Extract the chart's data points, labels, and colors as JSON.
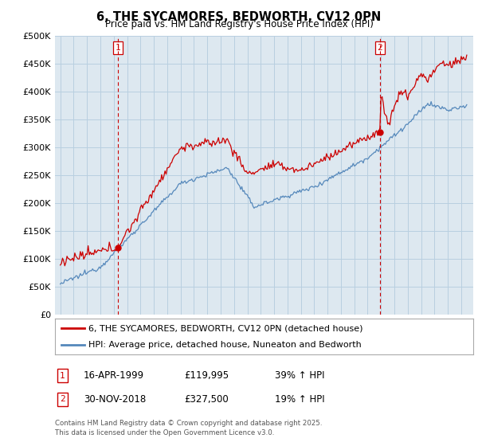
{
  "title": "6, THE SYCAMORES, BEDWORTH, CV12 0PN",
  "subtitle": "Price paid vs. HM Land Registry's House Price Index (HPI)",
  "legend_line1": "6, THE SYCAMORES, BEDWORTH, CV12 0PN (detached house)",
  "legend_line2": "HPI: Average price, detached house, Nuneaton and Bedworth",
  "annotation1_label": "1",
  "annotation1_date": "16-APR-1999",
  "annotation1_price": "£119,995",
  "annotation1_hpi": "39% ↑ HPI",
  "annotation2_label": "2",
  "annotation2_date": "30-NOV-2018",
  "annotation2_price": "£327,500",
  "annotation2_hpi": "19% ↑ HPI",
  "footer": "Contains HM Land Registry data © Crown copyright and database right 2025.\nThis data is licensed under the Open Government Licence v3.0.",
  "red_color": "#cc0000",
  "blue_color": "#5588bb",
  "chart_bg_color": "#dde8f0",
  "background_color": "#ffffff",
  "grid_color": "#b8cfe0",
  "ylim": [
    0,
    500000
  ],
  "yticks": [
    0,
    50000,
    100000,
    150000,
    200000,
    250000,
    300000,
    350000,
    400000,
    450000,
    500000
  ],
  "vline1_year": 1999.29,
  "vline2_year": 2018.92,
  "marker1_red_value": 119995,
  "marker1_year": 1999.29,
  "marker2_red_value": 327500,
  "marker2_year": 2018.92
}
